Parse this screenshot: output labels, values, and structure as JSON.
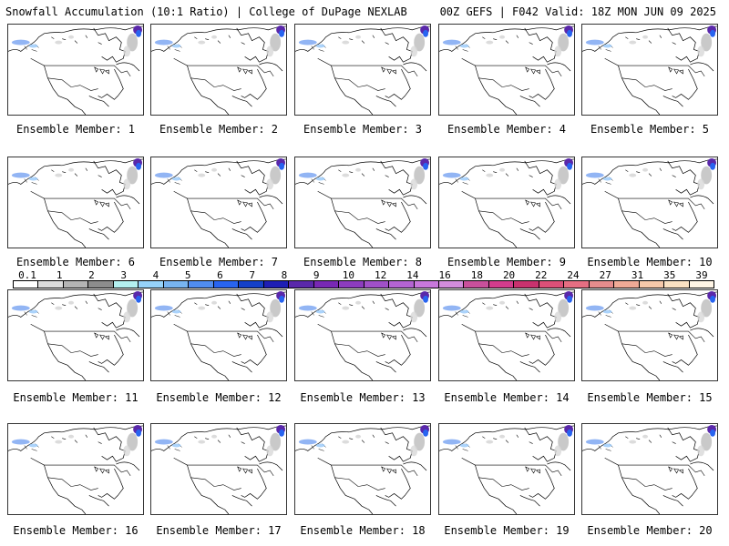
{
  "header": {
    "left_title": "Snowfall Accumulation (10:1 Ratio) | College of DuPage NEXLAB",
    "right_title": "00Z GEFS | F042 Valid: 18Z MON JUN 09 2025"
  },
  "panels": [
    {
      "label": "Ensemble Member: 1"
    },
    {
      "label": "Ensemble Member: 2"
    },
    {
      "label": "Ensemble Member: 3"
    },
    {
      "label": "Ensemble Member: 4"
    },
    {
      "label": "Ensemble Member: 5"
    },
    {
      "label": "Ensemble Member: 6"
    },
    {
      "label": "Ensemble Member: 7"
    },
    {
      "label": "Ensemble Member: 8"
    },
    {
      "label": "Ensemble Member: 9"
    },
    {
      "label": "Ensemble Member: 10"
    },
    {
      "label": "Ensemble Member: 11"
    },
    {
      "label": "Ensemble Member: 12"
    },
    {
      "label": "Ensemble Member: 13"
    },
    {
      "label": "Ensemble Member: 14"
    },
    {
      "label": "Ensemble Member: 15"
    },
    {
      "label": "Ensemble Member: 16"
    },
    {
      "label": "Ensemble Member: 17"
    },
    {
      "label": "Ensemble Member: 18"
    },
    {
      "label": "Ensemble Member: 19"
    },
    {
      "label": "Ensemble Member: 20"
    }
  ],
  "colorbar": {
    "ticks": [
      "0.1",
      "1",
      "2",
      "3",
      "4",
      "5",
      "6",
      "7",
      "8",
      "9",
      "10",
      "12",
      "14",
      "16",
      "18",
      "20",
      "22",
      "24",
      "27",
      "31",
      "35",
      "39"
    ],
    "colors": [
      "#ffffff",
      "#dcdcdc",
      "#b4b4b4",
      "#8c8c8c",
      "#b4f0f0",
      "#96d2fa",
      "#78b4f0",
      "#508cf0",
      "#2864f0",
      "#1440c8",
      "#1e1eb4",
      "#5a28aa",
      "#7828b4",
      "#8c3cbe",
      "#a050c8",
      "#b464d2",
      "#c878dc",
      "#d28cdc",
      "#c8509b",
      "#d23c8c",
      "#c8326e",
      "#dc5078",
      "#e66e82",
      "#e68c8c",
      "#f0aa96",
      "#f5c8aa",
      "#fae1c3",
      "#fff5e6"
    ]
  }
}
